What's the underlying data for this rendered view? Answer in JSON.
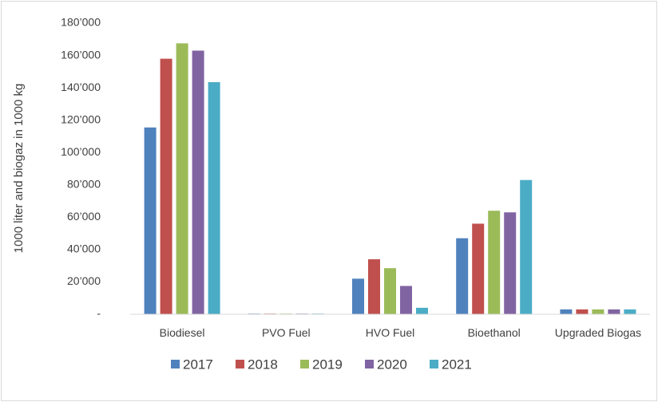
{
  "chart_data": {
    "type": "bar",
    "y_label": "1000 liter and biogaz in 1000 kg",
    "categories": [
      "Biodiesel",
      "PVO Fuel",
      "HVO Fuel",
      "Bioethanol",
      "Upgraded Biogas"
    ],
    "series": [
      {
        "name": "2017",
        "color": "#4f81bd",
        "values": [
          115500,
          400,
          22000,
          47000,
          3000
        ]
      },
      {
        "name": "2018",
        "color": "#c0504d",
        "values": [
          158000,
          400,
          34000,
          56000,
          3000
        ]
      },
      {
        "name": "2019",
        "color": "#9bbb59",
        "values": [
          167500,
          400,
          28500,
          64000,
          3000
        ]
      },
      {
        "name": "2020",
        "color": "#8064a2",
        "values": [
          163000,
          400,
          17500,
          63000,
          3000
        ]
      },
      {
        "name": "2021",
        "color": "#4bacc6",
        "values": [
          143500,
          400,
          4000,
          83000,
          3000
        ]
      }
    ],
    "ylim": [
      0,
      180000
    ],
    "yticks": [
      {
        "value": 0,
        "label": "-"
      },
      {
        "value": 20000,
        "label": "20’000"
      },
      {
        "value": 40000,
        "label": "40’000"
      },
      {
        "value": 60000,
        "label": "60’000"
      },
      {
        "value": 80000,
        "label": "80’000"
      },
      {
        "value": 100000,
        "label": "100’000"
      },
      {
        "value": 120000,
        "label": "120’000"
      },
      {
        "value": 140000,
        "label": "140’000"
      },
      {
        "value": 160000,
        "label": "160’000"
      },
      {
        "value": 180000,
        "label": "180’000"
      }
    ],
    "grid": false,
    "legend": "bottom"
  }
}
